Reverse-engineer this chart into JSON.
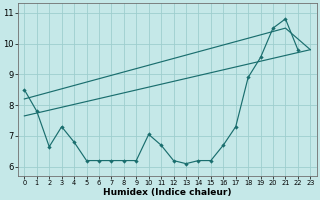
{
  "xlabel": "Humidex (Indice chaleur)",
  "bg_color": "#c5e8e8",
  "grid_color": "#9ecece",
  "line_color": "#1a6e6e",
  "x_data": [
    0,
    1,
    2,
    3,
    4,
    5,
    6,
    7,
    8,
    9,
    10,
    11,
    12,
    13,
    14,
    15,
    16,
    17,
    18,
    19,
    20,
    21,
    22,
    23
  ],
  "y_jagged": [
    8.5,
    7.8,
    6.65,
    7.3,
    6.8,
    6.2,
    6.2,
    6.2,
    6.2,
    6.2,
    7.05,
    6.7,
    6.2,
    6.1,
    6.2,
    6.2,
    6.7,
    7.3,
    8.9,
    9.55,
    10.5,
    10.8,
    9.8,
    null
  ],
  "y_trend1_x": [
    0,
    23
  ],
  "y_trend1_y": [
    7.65,
    9.8
  ],
  "y_trend2_x": [
    0,
    21,
    23
  ],
  "y_trend2_y": [
    8.2,
    10.5,
    9.8
  ],
  "xlim": [
    -0.5,
    23.5
  ],
  "ylim": [
    5.7,
    11.3
  ],
  "yticks": [
    6,
    7,
    8,
    9,
    10,
    11
  ],
  "xticks": [
    0,
    1,
    2,
    3,
    4,
    5,
    6,
    7,
    8,
    9,
    10,
    11,
    12,
    13,
    14,
    15,
    16,
    17,
    18,
    19,
    20,
    21,
    22,
    23
  ],
  "marker_size": 2.2,
  "line_width": 0.85,
  "xlabel_fontsize": 6.5,
  "tick_fontsize_x": 4.8,
  "tick_fontsize_y": 6.0
}
